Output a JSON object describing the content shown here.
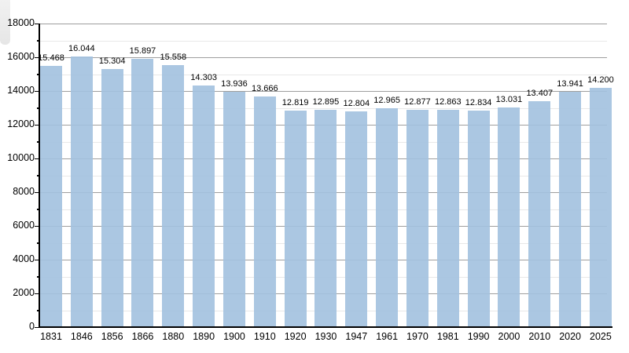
{
  "chart_data": {
    "type": "bar",
    "title": "",
    "xlabel": "",
    "ylabel": "",
    "categories": [
      "1831",
      "1846",
      "1856",
      "1866",
      "1880",
      "1890",
      "1900",
      "1910",
      "1920",
      "1930",
      "1947",
      "1961",
      "1970",
      "1981",
      "1990",
      "2000",
      "2010",
      "2020",
      "2025"
    ],
    "values": [
      15468,
      16044,
      15304,
      15897,
      15558,
      14303,
      13936,
      13666,
      12819,
      12895,
      12804,
      12965,
      12877,
      12863,
      12834,
      13031,
      13407,
      13941,
      14200
    ],
    "bar_labels": [
      "15.468",
      "16.044",
      "15.304",
      "15.897",
      "15.558",
      "14.303",
      "13.936",
      "13.666",
      "12.819",
      "12.895",
      "12.804",
      "12.965",
      "12.877",
      "12.863",
      "12.834",
      "13.031",
      "13.407",
      "13.941",
      "14.200"
    ],
    "ylim": [
      0,
      18000
    ],
    "y_major_step": 2000,
    "y_minor_step": 1000,
    "y_tick_labels": [
      "0",
      "2000",
      "4000",
      "6000",
      "8000",
      "10000",
      "12000",
      "14000",
      "16000",
      "18000"
    ],
    "grid": "horizontal minor and major gridlines, on",
    "legend": "none",
    "colors": {
      "bar_fill": "rgba(162, 193, 223, 0.9)",
      "bar_fill_hex": "#aac6e1",
      "grid_major": "#9e9e9e",
      "grid_minor": "#e8e8e8",
      "axis": "#000000",
      "text": "#000000",
      "background": "#ffffff"
    }
  }
}
